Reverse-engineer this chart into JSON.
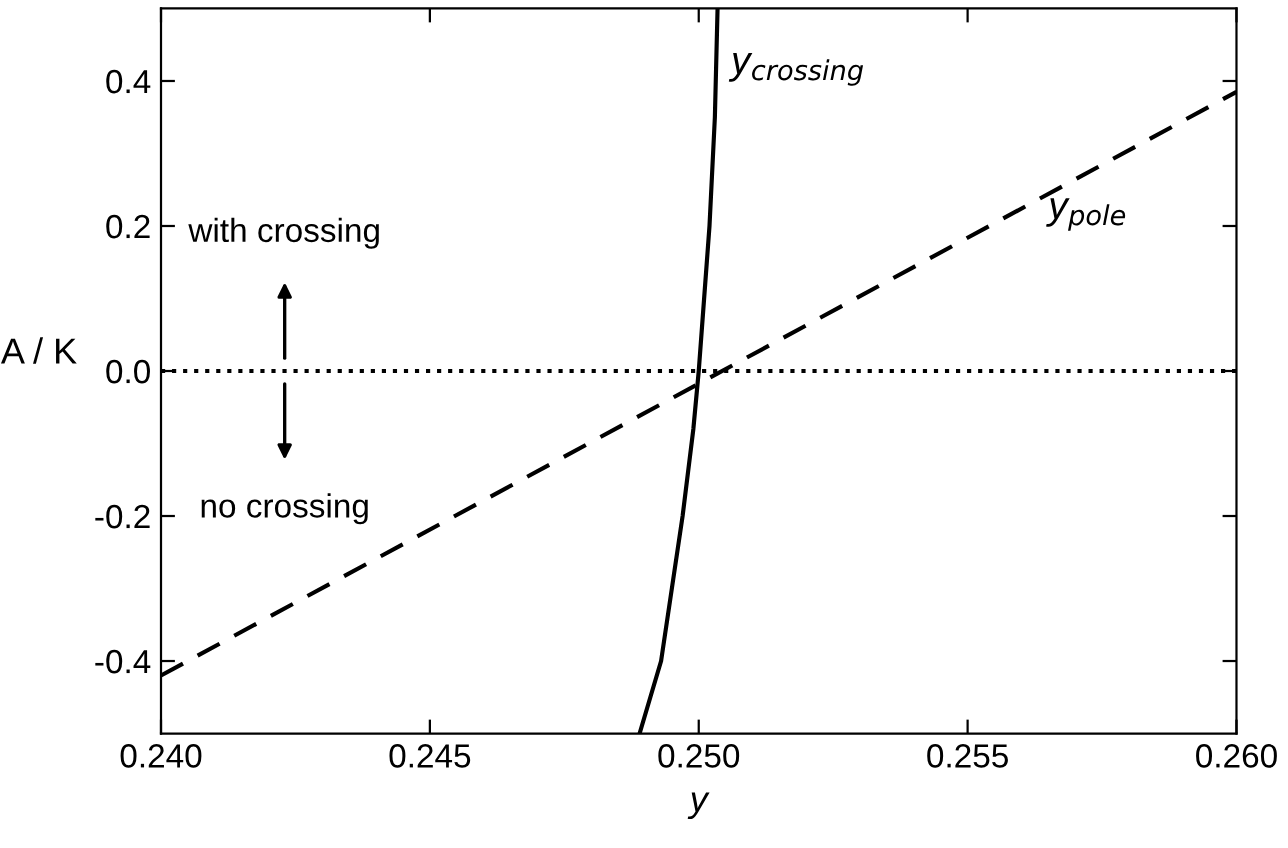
{
  "chart_data": {
    "type": "line",
    "xlabel": "y",
    "ylabel": "A / K",
    "xlim": [
      0.24,
      0.26
    ],
    "ylim": [
      -0.5,
      0.5
    ],
    "xticks": [
      {
        "value": 0.24,
        "label": "0.240"
      },
      {
        "value": 0.245,
        "label": "0.245"
      },
      {
        "value": 0.25,
        "label": "0.250"
      },
      {
        "value": 0.255,
        "label": "0.255"
      },
      {
        "value": 0.26,
        "label": "0.260"
      }
    ],
    "yticks": [
      {
        "value": -0.4,
        "label": "-0.4"
      },
      {
        "value": -0.2,
        "label": "-0.2"
      },
      {
        "value": 0.0,
        "label": "0.0"
      },
      {
        "value": 0.2,
        "label": "0.2"
      },
      {
        "value": 0.4,
        "label": "0.4"
      }
    ],
    "series": [
      {
        "name": "y$_{crossing}$",
        "color": "#000000",
        "line_style": "solid",
        "x": [
          0.2489,
          0.2491,
          0.2493,
          0.2495,
          0.2497,
          0.2499,
          0.25,
          0.2501,
          0.2502,
          0.2503,
          0.25035
        ],
        "values": [
          -0.5,
          -0.45,
          -0.4,
          -0.3,
          -0.2,
          -0.08,
          0.0,
          0.1,
          0.2,
          0.35,
          0.5
        ]
      },
      {
        "name": "y$_{pole}$",
        "color": "#000000",
        "line_style": "dashed",
        "x": [
          0.24,
          0.26
        ],
        "values": [
          -0.42,
          0.385
        ]
      }
    ],
    "ref_lines": [
      {
        "axis": "y",
        "value": 0.0,
        "line_style": "dotted",
        "color": "#000000"
      }
    ],
    "annotations": [
      "with crossing",
      "no crossing"
    ],
    "grid": false
  }
}
